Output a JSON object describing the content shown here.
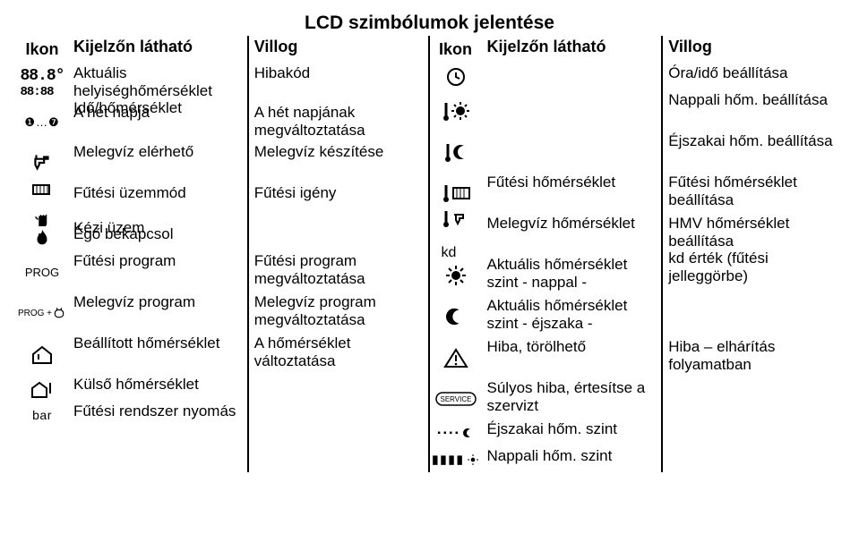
{
  "title": "LCD szimbólumok jelentése",
  "headers": {
    "ikon": "Ikon",
    "visible": "Kijelzőn látható",
    "blink": "Villog"
  },
  "left": [
    {
      "icon": "seg-temp",
      "visible": "Aktuális helyiséghőmérséklet\nIdő/hőmérséklet",
      "blink": "Hibakód",
      "h": "h1"
    },
    {
      "icon": "days",
      "visible": "A hét napja",
      "blink": "A hét napjának megváltoztatása",
      "h": "h2"
    },
    {
      "icon": "tap",
      "visible": "Melegvíz elérhető",
      "blink": "Melegvíz készítése",
      "h": "h-tall"
    },
    {
      "icon": "radiator-hand",
      "visible": "Fűtési üzemmód\n\nKézi üzem",
      "blink": "Fűtési igény",
      "h": "h-tall"
    },
    {
      "icon": "flame",
      "visible": "Égő bekapcsol",
      "blink": "",
      "h": "h-single"
    },
    {
      "icon": "prog",
      "visible": "Fűtési program",
      "blink": "Fűtési program megváltoztatása",
      "h": "h-tall"
    },
    {
      "icon": "prog-tap",
      "visible": "Melegvíz program",
      "blink": "Melegvíz program megváltoztatása",
      "h": "h-tall"
    },
    {
      "icon": "house",
      "visible": "Beállított hőmérséklet",
      "blink": "A hőmérséklet változtatása",
      "h": "h-tall"
    },
    {
      "icon": "house-out",
      "visible": "Külső hőmérséklet",
      "blink": "",
      "h": "h-single"
    },
    {
      "icon": "bar",
      "visible": "Fűtési rendszer nyomás",
      "blink": "",
      "h": "h-single"
    }
  ],
  "right": [
    {
      "icon": "clock",
      "visible": "",
      "blink": "Óra/idő beállítása",
      "h": "h-single"
    },
    {
      "icon": "therm-sun",
      "visible": "",
      "blink": "Nappali hőm. beállítása",
      "h": "h-tall"
    },
    {
      "icon": "therm-moon",
      "visible": "",
      "blink": "Éjszakai hőm. beállítása",
      "h": "h-tall"
    },
    {
      "icon": "therm-rad",
      "visible": "Fűtési hőmérséklet",
      "blink": "Fűtési hőmérséklet beállítása",
      "h": "h-tall"
    },
    {
      "icon": "therm-tap-kd",
      "visible": "Melegvíz hőmérséklet",
      "blink": "HMV hőmérséklet beállítása\nkd érték (fűtési jelleggörbe)",
      "h": "h-tall"
    },
    {
      "icon": "sun",
      "visible": "Aktuális hőmérséklet szint - nappal -",
      "blink": "",
      "h": "h-tall"
    },
    {
      "icon": "moon",
      "visible": "Aktuális hőmérséklet szint - éjszaka -",
      "blink": "",
      "h": "h-tall"
    },
    {
      "icon": "warn",
      "visible": "Hiba, törölhető",
      "blink": "Hiba – elhárítás folyamatban",
      "h": "h-tall"
    },
    {
      "icon": "service",
      "visible": "Súlyos hiba, értesítse a szervizt",
      "blink": "",
      "h": "h-tall"
    },
    {
      "icon": "dots-moon",
      "visible": "Éjszakai hőm. szint",
      "blink": "",
      "h": "h-single"
    },
    {
      "icon": "bars-sun",
      "visible": "Nappali hőm. szint",
      "blink": "",
      "h": "h-single"
    }
  ]
}
